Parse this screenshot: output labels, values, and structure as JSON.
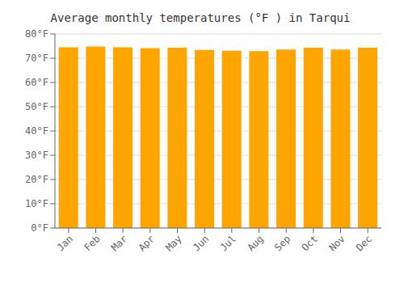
{
  "chart_data": {
    "type": "bar",
    "title": "Average monthly temperatures (°F ) in Tarqui",
    "categories": [
      "Jan",
      "Feb",
      "Mar",
      "Apr",
      "May",
      "Jun",
      "Jul",
      "Aug",
      "Sep",
      "Oct",
      "Nov",
      "Dec"
    ],
    "values": [
      74.5,
      74.8,
      74.5,
      74.2,
      74.3,
      73.4,
      73.1,
      72.9,
      73.6,
      74.3,
      73.6,
      74.3
    ],
    "color": "#FFA500",
    "ylim": [
      0,
      80
    ],
    "yticks": [
      {
        "value": 0,
        "label": "0°F"
      },
      {
        "value": 10,
        "label": "10°F"
      },
      {
        "value": 20,
        "label": "20°F"
      },
      {
        "value": 30,
        "label": "30°F"
      },
      {
        "value": 40,
        "label": "40°F"
      },
      {
        "value": 50,
        "label": "50°F"
      },
      {
        "value": 60,
        "label": "60°F"
      },
      {
        "value": 70,
        "label": "70°F"
      },
      {
        "value": 80,
        "label": "80°F"
      }
    ],
    "grid": true
  }
}
